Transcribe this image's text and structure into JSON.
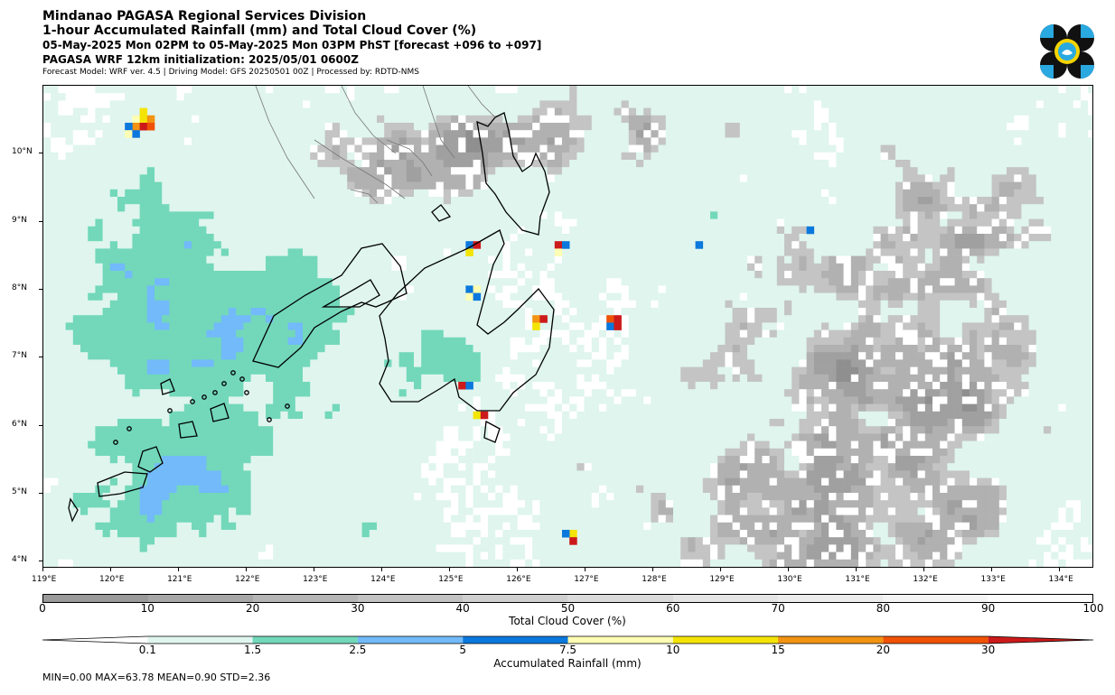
{
  "header": {
    "line1": "Mindanao PAGASA Regional Services Division",
    "line2": "1-hour Accumulated Rainfall (mm) and Total Cloud Cover (%)",
    "line3": "05-May-2025 Mon 02PM to 05-May-2025 Mon 03PM PhST [forecast +096 to +097]",
    "line4": "PAGASA WRF 12km initialization: 2025/05/01 0600Z",
    "line5": "Forecast Model: WRF ver. 4.5 | Driving Model: GFS 20250501 00Z | Processed by: RDTD-NMS"
  },
  "logo": {
    "icon": "pagasa-logo-icon",
    "colors": [
      "#111111",
      "#29a9e0",
      "#f5d400"
    ]
  },
  "map": {
    "lon_range": [
      119,
      134.5
    ],
    "lat_range": [
      3.9,
      11.0
    ],
    "x_ticks": [
      "119°E",
      "120°E",
      "121°E",
      "122°E",
      "123°E",
      "124°E",
      "125°E",
      "126°E",
      "127°E",
      "128°E",
      "129°E",
      "130°E",
      "131°E",
      "132°E",
      "133°E",
      "134°E"
    ],
    "y_ticks": [
      "10°N",
      "9°N",
      "8°N",
      "7°N",
      "6°N",
      "5°N",
      "4°N"
    ],
    "coastline_color": "#000000"
  },
  "cloud_colorbar": {
    "title": "Total Cloud Cover (%)",
    "ticks": [
      "0",
      "10",
      "20",
      "30",
      "40",
      "50",
      "60",
      "70",
      "80",
      "90",
      "100"
    ],
    "colors": [
      "#9a9a9a",
      "#a7a7a7",
      "#b5b5b5",
      "#c2c2c2",
      "#cfcfcf",
      "#dadada",
      "#e4e4e4",
      "#ececec",
      "#f4f4f4",
      "#fbfbfb"
    ]
  },
  "rain_colorbar": {
    "title": "Accumulated Rainfall (mm)",
    "ticks": [
      "0.1",
      "1.5",
      "2.5",
      "5",
      "7.5",
      "10",
      "15",
      "20",
      "30"
    ],
    "colors": [
      "#ffffff",
      "#dff5ee",
      "#72d8b9",
      "#72baf9",
      "#0a78dd",
      "#fdfdb4",
      "#f4e405",
      "#f29312",
      "#f05205",
      "#cc1a1a"
    ]
  },
  "stats": "MIN=0.00   MAX=63.78   MEAN=0.90   STD=2.36"
}
